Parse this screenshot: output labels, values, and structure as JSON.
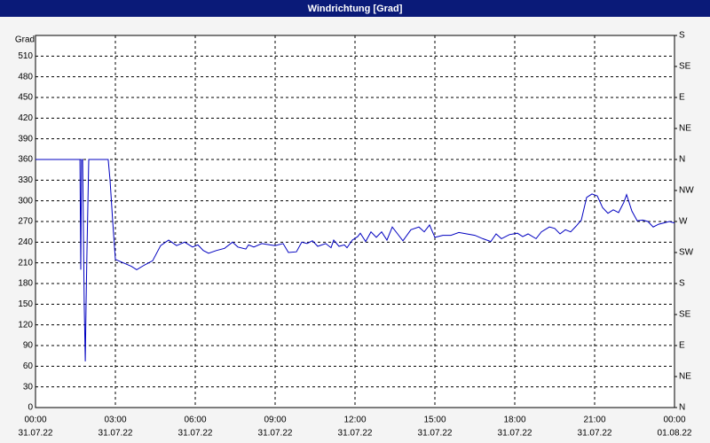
{
  "chart_data": {
    "type": "line",
    "title": "Windrichtung [Grad]",
    "y_label": "Grad",
    "x": [
      0,
      1.67,
      1.7,
      1.73,
      1.77,
      1.83,
      1.87,
      1.9,
      1.93,
      2.0,
      2.73,
      2.8,
      2.9,
      3.0,
      3.3,
      3.6,
      3.8,
      4.1,
      4.4,
      4.7,
      5.0,
      5.3,
      5.6,
      5.9,
      6.1,
      6.3,
      6.5,
      6.8,
      7.1,
      7.4,
      7.6,
      7.9,
      8.0,
      8.2,
      8.5,
      8.8,
      9.0,
      9.3,
      9.5,
      9.8,
      10.0,
      10.2,
      10.4,
      10.6,
      10.9,
      11.1,
      11.2,
      11.4,
      11.6,
      11.7,
      11.9,
      12.1,
      12.2,
      12.4,
      12.6,
      12.8,
      13.0,
      13.2,
      13.4,
      13.6,
      13.8,
      14.1,
      14.4,
      14.6,
      14.8,
      15.0,
      15.3,
      15.6,
      15.9,
      16.2,
      16.5,
      16.8,
      17.1,
      17.3,
      17.5,
      17.8,
      18.1,
      18.3,
      18.5,
      18.8,
      19.0,
      19.3,
      19.5,
      19.7,
      19.9,
      20.1,
      20.3,
      20.5,
      20.7,
      20.9,
      21.1,
      21.3,
      21.5,
      21.7,
      21.9,
      22.1,
      22.2,
      22.4,
      22.6,
      22.8,
      23.0,
      23.2,
      23.4,
      23.6,
      23.8,
      24.0
    ],
    "series": [
      {
        "color": "#0000c0",
        "values": [
          360,
          360,
          200,
          360,
          360,
          150,
          67,
          150,
          220,
          360,
          360,
          330,
          270,
          215,
          210,
          205,
          200,
          207,
          213,
          235,
          243,
          235,
          240,
          233,
          236,
          228,
          224,
          228,
          231,
          240,
          233,
          230,
          236,
          233,
          238,
          236,
          235,
          238,
          225,
          226,
          240,
          238,
          242,
          234,
          238,
          232,
          243,
          234,
          236,
          232,
          243,
          248,
          253,
          241,
          255,
          247,
          255,
          243,
          262,
          252,
          242,
          258,
          262,
          255,
          265,
          247,
          250,
          250,
          254,
          252,
          250,
          245,
          241,
          252,
          245,
          251,
          253,
          248,
          252,
          245,
          255,
          262,
          260,
          252,
          258,
          255,
          263,
          272,
          305,
          310,
          307,
          290,
          282,
          287,
          283,
          298,
          309,
          285,
          271,
          272,
          270,
          262,
          266,
          268,
          270,
          268
        ]
      }
    ],
    "xlim": [
      0,
      24
    ],
    "xticks": [
      {
        "value": 0,
        "label": "00:00"
      },
      {
        "value": 3,
        "label": "03:00"
      },
      {
        "value": 6,
        "label": "06:00"
      },
      {
        "value": 9,
        "label": "09:00"
      },
      {
        "value": 12,
        "label": "12:00"
      },
      {
        "value": 15,
        "label": "15:00"
      },
      {
        "value": 18,
        "label": "18:00"
      },
      {
        "value": 21,
        "label": "21:00"
      },
      {
        "value": 24,
        "label": "00:00"
      }
    ],
    "xtick_dates": [
      "31.07.22",
      "31.07.22",
      "31.07.22",
      "31.07.22",
      "31.07.22",
      "31.07.22",
      "31.07.22",
      "31.07.22",
      "01.08.22"
    ],
    "ylim": [
      0,
      540
    ],
    "yticks": [
      0,
      30,
      60,
      90,
      120,
      150,
      180,
      210,
      240,
      270,
      300,
      330,
      360,
      390,
      420,
      450,
      480,
      510
    ],
    "y2lim": [
      0,
      540
    ],
    "y2ticks": [
      {
        "value": 0,
        "label": "N"
      },
      {
        "value": 45,
        "label": "NE"
      },
      {
        "value": 90,
        "label": "E"
      },
      {
        "value": 135,
        "label": "SE"
      },
      {
        "value": 180,
        "label": "S"
      },
      {
        "value": 225,
        "label": "SW"
      },
      {
        "value": 270,
        "label": "W"
      },
      {
        "value": 315,
        "label": "NW"
      },
      {
        "value": 360,
        "label": "N"
      },
      {
        "value": 405,
        "label": "NE"
      },
      {
        "value": 450,
        "label": "E"
      },
      {
        "value": 495,
        "label": "SE"
      },
      {
        "value": 540,
        "label": "S"
      }
    ],
    "grid": true
  }
}
